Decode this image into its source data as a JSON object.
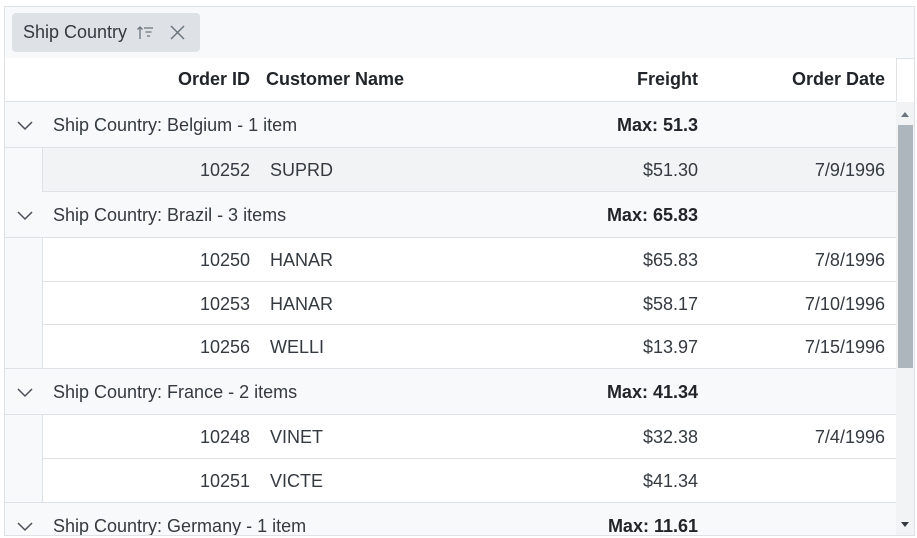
{
  "grouping": {
    "chip_label": "Ship Country",
    "sort_icon": "sort-ascending-icon",
    "close_icon": "close-icon"
  },
  "columns": {
    "order_id": "Order ID",
    "customer_name": "Customer Name",
    "freight": "Freight",
    "order_date": "Order Date"
  },
  "groups": [
    {
      "title": "Ship Country: Belgium - 1 item",
      "aggregate": "Max: 51.3",
      "rows": [
        {
          "order_id": "10252",
          "customer": "SUPRD",
          "freight": "$51.30",
          "date": "7/9/1996",
          "selected": true
        }
      ]
    },
    {
      "title": "Ship Country: Brazil - 3 items",
      "aggregate": "Max: 65.83",
      "rows": [
        {
          "order_id": "10250",
          "customer": "HANAR",
          "freight": "$65.83",
          "date": "7/8/1996"
        },
        {
          "order_id": "10253",
          "customer": "HANAR",
          "freight": "$58.17",
          "date": "7/10/1996"
        },
        {
          "order_id": "10256",
          "customer": "WELLI",
          "freight": "$13.97",
          "date": "7/15/1996"
        }
      ]
    },
    {
      "title": "Ship Country: France - 2 items",
      "aggregate": "Max: 41.34",
      "rows": [
        {
          "order_id": "10248",
          "customer": "VINET",
          "freight": "$32.38",
          "date": "7/4/1996"
        },
        {
          "order_id": "10251",
          "customer": "VICTE",
          "freight": "$41.34",
          "date": ""
        }
      ]
    },
    {
      "title": "Ship Country: Germany - 1 item",
      "aggregate": "Max: 11.61",
      "rows": []
    }
  ],
  "colors": {
    "group_bg": "#f8f9fa",
    "border": "#dee2e6",
    "selected_row": "#f1f3f5",
    "scroll_thumb": "#adb5bd"
  }
}
